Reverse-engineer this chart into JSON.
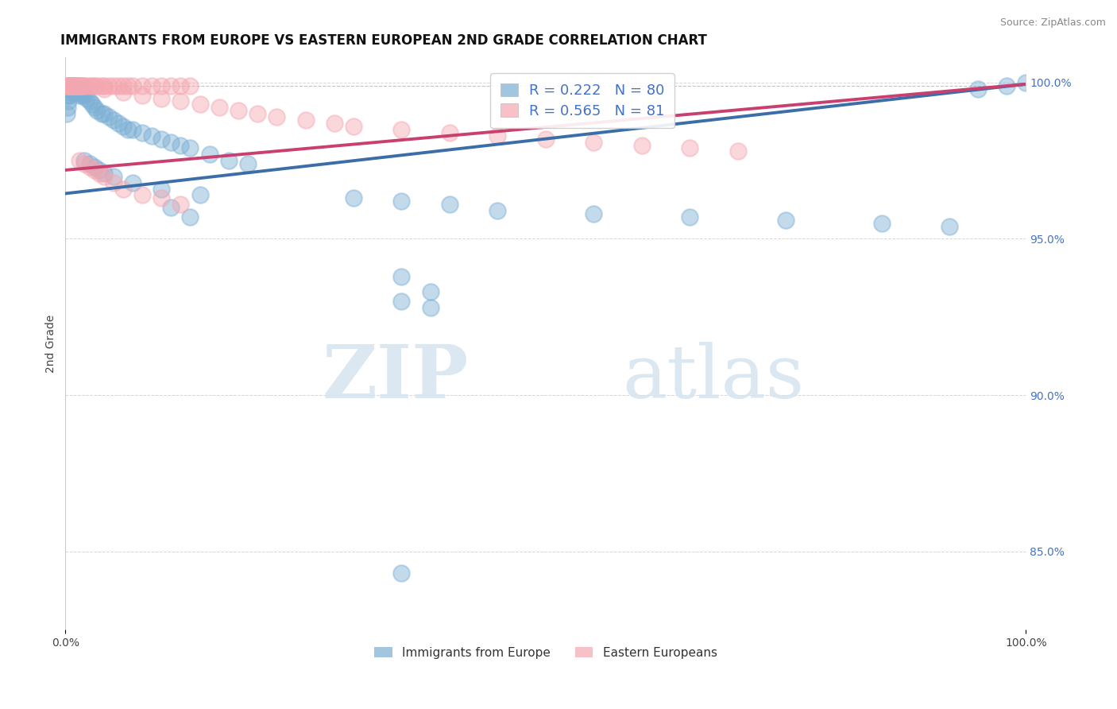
{
  "title": "IMMIGRANTS FROM EUROPE VS EASTERN EUROPEAN 2ND GRADE CORRELATION CHART",
  "source": "Source: ZipAtlas.com",
  "ylabel": "2nd Grade",
  "xlim": [
    0.0,
    1.0
  ],
  "ylim": [
    0.825,
    1.008
  ],
  "blue_R": 0.222,
  "blue_N": 80,
  "pink_R": 0.565,
  "pink_N": 81,
  "blue_color": "#7BAFD4",
  "pink_color": "#F4A7B0",
  "blue_line_color": "#3B6EA8",
  "pink_line_color": "#C94070",
  "watermark_zip": "ZIP",
  "watermark_atlas": "atlas",
  "legend_label_blue": "Immigrants from Europe",
  "legend_label_pink": "Eastern Europeans",
  "ytick_vals": [
    0.85,
    0.9,
    0.95,
    1.0
  ],
  "ytick_labels": [
    "85.0%",
    "90.0%",
    "95.0%",
    "100.0%"
  ],
  "right_ytick_vals": [
    1.0,
    0.95,
    0.9,
    0.85
  ],
  "right_ytick_labels": [
    "100.0%",
    "95.0%",
    "90.0%",
    "85.0%"
  ],
  "blue_trend_x0": 0.0,
  "blue_trend_y0": 0.9645,
  "blue_trend_x1": 1.0,
  "blue_trend_y1": 0.9995,
  "pink_trend_x0": 0.0,
  "pink_trend_y0": 0.972,
  "pink_trend_x1": 1.0,
  "pink_trend_y1": 0.9995,
  "blue_scatter_x": [
    0.001,
    0.002,
    0.003,
    0.003,
    0.004,
    0.004,
    0.005,
    0.005,
    0.006,
    0.006,
    0.007,
    0.007,
    0.008,
    0.008,
    0.009,
    0.009,
    0.01,
    0.01,
    0.011,
    0.011,
    0.012,
    0.012,
    0.013,
    0.014,
    0.015,
    0.015,
    0.016,
    0.017,
    0.018,
    0.02,
    0.022,
    0.025,
    0.028,
    0.03,
    0.033,
    0.038,
    0.04,
    0.045,
    0.05,
    0.055,
    0.06,
    0.065,
    0.07,
    0.08,
    0.09,
    0.1,
    0.11,
    0.12,
    0.13,
    0.15,
    0.17,
    0.19,
    0.02,
    0.025,
    0.03,
    0.035,
    0.04,
    0.05,
    0.07,
    0.1,
    0.14,
    0.3,
    0.35,
    0.4,
    0.45,
    0.55,
    0.65,
    0.75,
    0.85,
    0.92,
    0.95,
    0.98,
    1.0,
    0.11,
    0.13,
    0.35,
    0.38,
    0.35,
    0.38,
    0.35
  ],
  "blue_scatter_y": [
    0.99,
    0.992,
    0.994,
    0.996,
    0.996,
    0.998,
    0.998,
    0.999,
    0.998,
    0.999,
    0.997,
    0.999,
    0.998,
    0.999,
    0.998,
    0.999,
    0.997,
    0.998,
    0.998,
    0.999,
    0.997,
    0.998,
    0.998,
    0.997,
    0.996,
    0.998,
    0.997,
    0.996,
    0.997,
    0.996,
    0.995,
    0.994,
    0.993,
    0.992,
    0.991,
    0.99,
    0.99,
    0.989,
    0.988,
    0.987,
    0.986,
    0.985,
    0.985,
    0.984,
    0.983,
    0.982,
    0.981,
    0.98,
    0.979,
    0.977,
    0.975,
    0.974,
    0.975,
    0.974,
    0.973,
    0.972,
    0.971,
    0.97,
    0.968,
    0.966,
    0.964,
    0.963,
    0.962,
    0.961,
    0.959,
    0.958,
    0.957,
    0.956,
    0.955,
    0.954,
    0.998,
    0.999,
    1.0,
    0.96,
    0.957,
    0.93,
    0.928,
    0.938,
    0.933,
    0.843
  ],
  "pink_scatter_x": [
    0.001,
    0.002,
    0.003,
    0.003,
    0.004,
    0.004,
    0.005,
    0.005,
    0.006,
    0.006,
    0.007,
    0.007,
    0.008,
    0.008,
    0.009,
    0.009,
    0.01,
    0.01,
    0.011,
    0.011,
    0.012,
    0.012,
    0.013,
    0.014,
    0.015,
    0.015,
    0.016,
    0.017,
    0.018,
    0.02,
    0.022,
    0.025,
    0.028,
    0.03,
    0.033,
    0.038,
    0.04,
    0.045,
    0.05,
    0.055,
    0.06,
    0.065,
    0.07,
    0.08,
    0.09,
    0.1,
    0.11,
    0.12,
    0.13,
    0.04,
    0.06,
    0.08,
    0.1,
    0.12,
    0.14,
    0.16,
    0.18,
    0.2,
    0.22,
    0.25,
    0.28,
    0.3,
    0.35,
    0.4,
    0.45,
    0.5,
    0.55,
    0.6,
    0.65,
    0.7,
    0.015,
    0.02,
    0.025,
    0.03,
    0.035,
    0.04,
    0.05,
    0.06,
    0.08,
    0.1,
    0.12
  ],
  "pink_scatter_y": [
    0.999,
    0.999,
    0.999,
    0.999,
    0.999,
    0.999,
    0.999,
    0.999,
    0.999,
    0.999,
    0.999,
    0.999,
    0.999,
    0.999,
    0.999,
    0.999,
    0.999,
    0.999,
    0.999,
    0.999,
    0.999,
    0.999,
    0.999,
    0.999,
    0.999,
    0.999,
    0.999,
    0.999,
    0.999,
    0.999,
    0.999,
    0.999,
    0.999,
    0.999,
    0.999,
    0.999,
    0.999,
    0.999,
    0.999,
    0.999,
    0.999,
    0.999,
    0.999,
    0.999,
    0.999,
    0.999,
    0.999,
    0.999,
    0.999,
    0.998,
    0.997,
    0.996,
    0.995,
    0.994,
    0.993,
    0.992,
    0.991,
    0.99,
    0.989,
    0.988,
    0.987,
    0.986,
    0.985,
    0.984,
    0.983,
    0.982,
    0.981,
    0.98,
    0.979,
    0.978,
    0.975,
    0.974,
    0.973,
    0.972,
    0.971,
    0.97,
    0.968,
    0.966,
    0.964,
    0.963,
    0.961
  ]
}
